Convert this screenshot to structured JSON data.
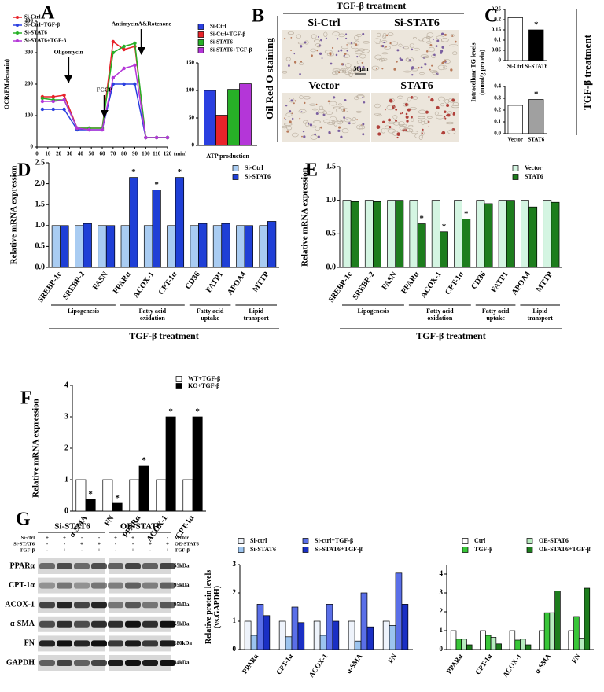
{
  "panels": [
    "A",
    "B",
    "C",
    "D",
    "E",
    "F",
    "G"
  ],
  "microscopy": {
    "header": "TGF-β treatment",
    "top_labels": [
      "Si-Ctrl",
      "Si-STAT6"
    ],
    "bottom_labels": [
      "Vector",
      "STAT6"
    ],
    "side": "Oil Red O staining",
    "scale_bar": "50μm"
  },
  "c_side": "TGF-β treatment",
  "blot": {
    "groups": [
      "Si-STAT6",
      "OE-STAT6"
    ],
    "conditions": [
      {
        "labels": [
          "Si-ctrl",
          "Si-STAT6",
          "TGF-β"
        ],
        "signs": [
          [
            "+",
            "+",
            "-",
            "-"
          ],
          [
            "-",
            "-",
            "+",
            "+"
          ],
          [
            "-",
            "+",
            "-",
            "+"
          ]
        ]
      },
      {
        "labels": [
          "Vector",
          "OE-STAT6",
          "TGF-β"
        ],
        "signs": [
          [
            "+",
            "+",
            "-",
            "-"
          ],
          [
            "-",
            "-",
            "+",
            "+"
          ],
          [
            "-",
            "+",
            "-",
            "+"
          ]
        ]
      }
    ],
    "proteins": [
      "PPARα",
      "CPT-1α",
      "ACOX-1",
      "α-SMA",
      "FN",
      "GAPDH"
    ],
    "weights": [
      "55kDa",
      "95kDa",
      "95kDa",
      "55kDa",
      "180kDa",
      "34kDa"
    ]
  },
  "chart_data": [
    {
      "type": "line",
      "ylabel": [
        "OCR(PMoles/min)"
      ],
      "xlabel": "(min)",
      "xlim": [
        0,
        120
      ],
      "xticks": [
        0,
        10,
        20,
        30,
        40,
        50,
        60,
        70,
        80,
        90,
        100,
        110,
        120
      ],
      "ylim": [
        0,
        400
      ],
      "yticks": [
        0,
        100,
        200,
        300,
        400
      ],
      "x": [
        5,
        15,
        25,
        37,
        48,
        60,
        70,
        80,
        90,
        100,
        110,
        120
      ],
      "series": [
        {
          "name": "Si-Ctrl",
          "color": "#e8232a",
          "values": [
            160,
            160,
            165,
            60,
            60,
            60,
            335,
            310,
            320,
            30,
            30,
            30
          ]
        },
        {
          "name": "Si-Ctrl+TGF-β",
          "color": "#2a3fe0",
          "values": [
            120,
            120,
            120,
            55,
            55,
            55,
            200,
            200,
            200,
            30,
            30,
            30
          ]
        },
        {
          "name": "Si-STAT6",
          "color": "#27b027",
          "values": [
            155,
            150,
            150,
            60,
            60,
            60,
            300,
            320,
            330,
            30,
            30,
            30
          ]
        },
        {
          "name": "Si-STAT6+TGF-β",
          "color": "#b436d8",
          "values": [
            145,
            145,
            150,
            60,
            55,
            55,
            220,
            250,
            260,
            30,
            30,
            30
          ]
        }
      ],
      "events": [
        {
          "label": "Oligomycin",
          "x": 29
        },
        {
          "label": "FCCP",
          "x": 62
        },
        {
          "label": "AntimycinA&Rotenone",
          "x": 96
        }
      ]
    },
    {
      "type": "bar",
      "xlabel": "ATP production",
      "ylim": [
        0,
        150
      ],
      "yticks": [
        0,
        50,
        100,
        150
      ],
      "categories": [
        null
      ],
      "series": [
        {
          "name": "Si-Ctrl",
          "color": "#2a3fe0",
          "values": [
            100
          ]
        },
        {
          "name": "Si-Ctrl+TGF-β",
          "color": "#e8232a",
          "values": [
            55
          ]
        },
        {
          "name": "Si-STAT6",
          "color": "#27b027",
          "values": [
            102
          ]
        },
        {
          "name": "Si-STAT6+TGF-β",
          "color": "#b436d8",
          "values": [
            112
          ]
        }
      ]
    },
    {
      "type": "bar",
      "ylabel": [
        "Intracelluar TG levels",
        "(mmol/g protein)"
      ],
      "ylim": [
        0,
        0.25
      ],
      "yticks": [
        0,
        0.05,
        0.1,
        0.15,
        0.2,
        0.25
      ],
      "categories": [
        "Si-Ctrl",
        "Si-STAT6"
      ],
      "values": [
        0.21,
        0.15
      ],
      "colors": [
        "#ffffff",
        "#000000"
      ],
      "significance": [
        null,
        "*"
      ]
    },
    {
      "type": "bar",
      "ylim": [
        0,
        0.4
      ],
      "yticks": [
        {
          "value": 0,
          "label": "0.0"
        },
        0.1,
        0.2,
        0.3,
        0.4
      ],
      "categories": [
        "Vector",
        "STAT6"
      ],
      "values": [
        0.24,
        0.29
      ],
      "colors": [
        "#ffffff",
        "#a0a0a0"
      ],
      "significance": [
        null,
        "*"
      ]
    },
    {
      "type": "bar",
      "ylabel": [
        "Relative mRNA expression"
      ],
      "xlabel": "TGF-β treatment",
      "ylim": [
        0,
        2.5
      ],
      "yticks": [
        {
          "value": 0,
          "label": "0.0"
        },
        0.5,
        {
          "value": 1,
          "label": "1.0"
        },
        1.5,
        {
          "value": 2,
          "label": "2.0"
        },
        2.5
      ],
      "categories": [
        "SREBP-1c",
        "SREBP-2",
        "FASN",
        "PPARα",
        "ACOX-1",
        "CPT-1α",
        "CD36",
        "FATP1",
        "APOA4",
        "MTTP"
      ],
      "series": [
        {
          "name": "Si-Ctrl",
          "color": "#a9ccf2",
          "values": [
            1,
            1,
            1,
            1,
            1,
            1,
            1,
            1,
            1,
            1
          ]
        },
        {
          "name": "Si-STAT6",
          "color": "#1f3fd6",
          "values": [
            1,
            1.05,
            1,
            2.15,
            1.85,
            2.15,
            1.05,
            1.05,
            1,
            1.1
          ],
          "significance": [
            null,
            null,
            null,
            "*",
            "*",
            "*",
            null,
            null,
            null,
            null
          ]
        }
      ],
      "groups": [
        {
          "label": [
            "Lipogenesis"
          ],
          "members": [
            "SREBP-1c",
            "SREBP-2",
            "FASN"
          ]
        },
        {
          "label": [
            "Fatty acid",
            "oxidation"
          ],
          "members": [
            "PPARα",
            "ACOX-1",
            "CPT-1α"
          ]
        },
        {
          "label": [
            "Fatty acid",
            "uptake"
          ],
          "members": [
            "CD36",
            "FATP1"
          ]
        },
        {
          "label": [
            "Lipid",
            "transport"
          ],
          "members": [
            "APOA4",
            "MTTP"
          ]
        }
      ]
    },
    {
      "type": "bar",
      "ylabel": [
        "Relative mRNA expression"
      ],
      "xlabel": "TGF-β treatment",
      "ylim": [
        0,
        1.5
      ],
      "yticks": [
        {
          "value": 0,
          "label": "0.0"
        },
        0.5,
        {
          "value": 1,
          "label": "1.0"
        },
        1.5
      ],
      "categories": [
        "SREBP-1c",
        "SREBP-2",
        "FASN",
        "PPARα",
        "ACOX-1",
        "CPT-1α",
        "CD36",
        "FATP1",
        "APOA4",
        "MTTP"
      ],
      "series": [
        {
          "name": "Vector",
          "color": "#d4f5e2",
          "values": [
            1,
            1,
            1,
            1,
            1,
            1,
            1,
            1,
            1,
            1
          ]
        },
        {
          "name": "STAT6",
          "color": "#1d7d1d",
          "values": [
            0.98,
            0.98,
            1,
            0.65,
            0.53,
            0.72,
            0.95,
            1,
            0.9,
            0.97
          ],
          "significance": [
            null,
            null,
            null,
            "*",
            "*",
            "*",
            null,
            null,
            null,
            null
          ]
        }
      ],
      "groups": [
        {
          "label": [
            "Lipogenesis"
          ],
          "members": [
            "SREBP-1c",
            "SREBP-2",
            "FASN"
          ]
        },
        {
          "label": [
            "Fatty acid",
            "oxidation"
          ],
          "members": [
            "PPARα",
            "ACOX-1",
            "CPT-1α"
          ]
        },
        {
          "label": [
            "Fatty acid",
            "uptake"
          ],
          "members": [
            "CD36",
            "FATP1"
          ]
        },
        {
          "label": [
            "Lipid",
            "transport"
          ],
          "members": [
            "APOA4",
            "MTTP"
          ]
        }
      ]
    },
    {
      "type": "bar",
      "ylabel": [
        "Relative mRNA expression"
      ],
      "ylim": [
        0,
        4
      ],
      "yticks": [
        0,
        1,
        2,
        3,
        4
      ],
      "categories": [
        "α-SMA",
        "FN",
        "PPARα",
        "ACOX-1",
        "CPT-1α"
      ],
      "series": [
        {
          "name": "WT+TGF-β",
          "color": "#ffffff",
          "values": [
            1,
            1,
            1,
            1,
            1
          ]
        },
        {
          "name": "KO+TGF-β",
          "color": "#000000",
          "values": [
            0.38,
            0.25,
            1.45,
            3,
            3
          ],
          "significance": [
            "*",
            "*",
            "*",
            "*",
            "*"
          ]
        }
      ]
    },
    {
      "type": "bar",
      "ylabel": [
        "Relative protein levels",
        "(vs.GAPDH)"
      ],
      "ylim": [
        0,
        3
      ],
      "yticks": [
        0,
        1,
        2,
        3
      ],
      "categories": [
        "PPARα",
        "CPT-1α",
        "ACOX-1",
        "α-SMA",
        "FN"
      ],
      "series": [
        {
          "name": "Si-ctrl",
          "color": "#eef3fb",
          "values": [
            1,
            1,
            1,
            1,
            1
          ]
        },
        {
          "name": "Si-STAT6",
          "color": "#9cc4ef",
          "values": [
            0.5,
            0.45,
            0.5,
            0.3,
            0.85
          ]
        },
        {
          "name": "Si-ctrl+TGF-β",
          "color": "#5a6fe8",
          "values": [
            1.6,
            1.5,
            1.6,
            2,
            2.7
          ]
        },
        {
          "name": "Si-STAT6+TGF-β",
          "color": "#1a2fc4",
          "values": [
            1.2,
            0.95,
            1,
            0.8,
            1.6
          ]
        }
      ]
    },
    {
      "type": "bar",
      "ylim": [
        0,
        4.5
      ],
      "yticks": [
        0,
        1,
        2,
        3,
        4
      ],
      "categories": [
        "PPARα",
        "CPT-1α",
        "ACOX-1",
        "α-SMA",
        "FN"
      ],
      "series": [
        {
          "name": "Ctrl",
          "color": "#ffffff",
          "values": [
            1,
            1,
            1,
            1,
            1
          ]
        },
        {
          "name": "TGF-β",
          "color": "#39c639",
          "values": [
            0.55,
            0.75,
            0.5,
            1.95,
            1.75
          ]
        },
        {
          "name": "OE-STAT6",
          "color": "#b8ecc0",
          "values": [
            0.55,
            0.65,
            0.55,
            1.95,
            0.6
          ]
        },
        {
          "name": "OE-STAT6+TGF-β",
          "color": "#1d7d1d",
          "values": [
            0.25,
            0.3,
            0.25,
            3.1,
            3.25
          ]
        }
      ]
    }
  ]
}
